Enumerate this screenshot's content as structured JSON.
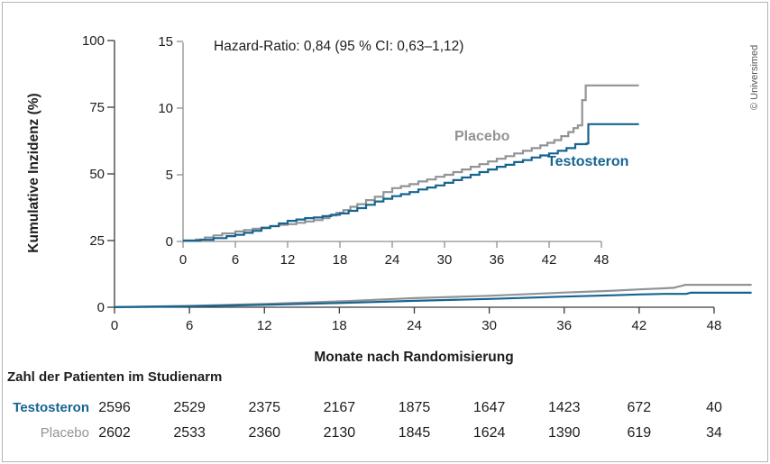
{
  "figure": {
    "credit": "© Universimed",
    "hazard_ratio_text": "Hazard-Ratio: 0,84 (95 % CI: 0,63–1,12)"
  },
  "chart_data": {
    "type": "line",
    "subtype": "kaplan-meier-cumulative-incidence-step",
    "title": "",
    "xlabel": "Monate nach Randomisierung",
    "ylabel": "Kumulative Inzidenz (%)",
    "annotation": "Hazard-Ratio: 0,84 (95 % CI: 0,63–1,12)",
    "legend_position": "inline-labels",
    "grid": false,
    "main_axis": {
      "x_ticks": [
        0,
        6,
        12,
        18,
        24,
        30,
        36,
        42,
        48
      ],
      "y_ticks": [
        0,
        25,
        50,
        75,
        100
      ],
      "xlim": [
        0,
        51
      ],
      "ylim": [
        0,
        100
      ]
    },
    "inset_axis": {
      "x_ticks": [
        0,
        6,
        12,
        18,
        24,
        30,
        36,
        42,
        48
      ],
      "y_ticks": [
        0,
        5,
        10,
        15
      ],
      "xlim": [
        0,
        52.3
      ],
      "ylim": [
        0,
        15
      ]
    },
    "series": [
      {
        "name": "Placebo",
        "color": "#919396",
        "points": [
          [
            0,
            0.07
          ],
          [
            1.5,
            0.15
          ],
          [
            2.5,
            0.3
          ],
          [
            3.5,
            0.45
          ],
          [
            4.5,
            0.6
          ],
          [
            6,
            0.75
          ],
          [
            7,
            0.85
          ],
          [
            8,
            0.95
          ],
          [
            9,
            1.05
          ],
          [
            10,
            1.15
          ],
          [
            11,
            1.25
          ],
          [
            12,
            1.3
          ],
          [
            13,
            1.4
          ],
          [
            14,
            1.5
          ],
          [
            15,
            1.6
          ],
          [
            16,
            1.75
          ],
          [
            16.8,
            1.95
          ],
          [
            17.6,
            2.15
          ],
          [
            18.4,
            2.35
          ],
          [
            19.2,
            2.6
          ],
          [
            20,
            2.8
          ],
          [
            21,
            3.1
          ],
          [
            22,
            3.35
          ],
          [
            23,
            3.7
          ],
          [
            24,
            4.0
          ],
          [
            25,
            4.15
          ],
          [
            26,
            4.3
          ],
          [
            27,
            4.5
          ],
          [
            28,
            4.65
          ],
          [
            29,
            4.85
          ],
          [
            30,
            5.0
          ],
          [
            31,
            5.2
          ],
          [
            32,
            5.4
          ],
          [
            33,
            5.6
          ],
          [
            34,
            5.8
          ],
          [
            35,
            6.0
          ],
          [
            36,
            6.2
          ],
          [
            37,
            6.4
          ],
          [
            38,
            6.6
          ],
          [
            39,
            6.8
          ],
          [
            40,
            7.0
          ],
          [
            41,
            7.2
          ],
          [
            41.8,
            7.4
          ],
          [
            42.6,
            7.6
          ],
          [
            43.4,
            7.9
          ],
          [
            44.2,
            8.2
          ],
          [
            44.8,
            8.5
          ],
          [
            45.3,
            8.7
          ],
          [
            45.8,
            10.6
          ],
          [
            46.2,
            11.7
          ],
          [
            52.3,
            11.7
          ]
        ]
      },
      {
        "name": "Testosteron",
        "color": "#16648f",
        "points": [
          [
            0,
            0.07
          ],
          [
            2,
            0.12
          ],
          [
            3.5,
            0.25
          ],
          [
            5,
            0.4
          ],
          [
            6,
            0.5
          ],
          [
            7,
            0.65
          ],
          [
            8,
            0.8
          ],
          [
            9,
            1.0
          ],
          [
            10,
            1.15
          ],
          [
            11,
            1.35
          ],
          [
            12,
            1.55
          ],
          [
            13,
            1.65
          ],
          [
            14,
            1.75
          ],
          [
            15,
            1.8
          ],
          [
            16,
            1.9
          ],
          [
            17,
            2.0
          ],
          [
            18,
            2.1
          ],
          [
            19,
            2.3
          ],
          [
            20,
            2.5
          ],
          [
            21,
            2.75
          ],
          [
            22,
            3.0
          ],
          [
            23,
            3.2
          ],
          [
            24,
            3.4
          ],
          [
            25,
            3.55
          ],
          [
            26,
            3.7
          ],
          [
            27,
            3.9
          ],
          [
            28,
            4.05
          ],
          [
            29,
            4.2
          ],
          [
            30,
            4.4
          ],
          [
            31,
            4.6
          ],
          [
            32,
            4.8
          ],
          [
            33,
            5.0
          ],
          [
            34,
            5.2
          ],
          [
            35,
            5.4
          ],
          [
            36,
            5.6
          ],
          [
            37,
            5.75
          ],
          [
            38,
            5.95
          ],
          [
            39,
            6.1
          ],
          [
            40,
            6.3
          ],
          [
            41,
            6.45
          ],
          [
            42,
            6.6
          ],
          [
            43,
            6.8
          ],
          [
            44,
            7.0
          ],
          [
            45,
            7.3
          ],
          [
            46.3,
            7.35
          ],
          [
            46.5,
            8.8
          ],
          [
            52.3,
            8.8
          ]
        ]
      }
    ],
    "overview_series": [
      {
        "name": "Placebo",
        "color": "#919396",
        "points": [
          [
            0,
            0.05
          ],
          [
            6,
            0.5
          ],
          [
            12,
            1.2
          ],
          [
            18,
            2.2
          ],
          [
            24,
            3.4
          ],
          [
            30,
            4.3
          ],
          [
            36,
            5.5
          ],
          [
            40,
            6.2
          ],
          [
            42,
            6.7
          ],
          [
            44,
            7.1
          ],
          [
            44.8,
            7.3
          ],
          [
            45.1,
            7.7
          ],
          [
            45.4,
            8.0
          ],
          [
            45.7,
            8.4
          ],
          [
            51,
            8.4
          ]
        ]
      },
      {
        "name": "Testosteron",
        "color": "#16648f",
        "points": [
          [
            0,
            0.05
          ],
          [
            6,
            0.35
          ],
          [
            12,
            0.9
          ],
          [
            18,
            1.6
          ],
          [
            24,
            2.4
          ],
          [
            30,
            3.1
          ],
          [
            36,
            4.0
          ],
          [
            40,
            4.5
          ],
          [
            42,
            4.8
          ],
          [
            44,
            5.0
          ],
          [
            45.8,
            5.05
          ],
          [
            46.1,
            5.45
          ],
          [
            51,
            5.45
          ]
        ]
      }
    ]
  },
  "risk_table": {
    "title": "Zahl der Patienten im Studienarm",
    "months": [
      0,
      6,
      12,
      18,
      24,
      30,
      36,
      42,
      48
    ],
    "rows": [
      {
        "label": "Testosteron",
        "color": "#16648f",
        "bold": true,
        "values": [
          "2596",
          "2529",
          "2375",
          "2167",
          "1875",
          "1647",
          "1423",
          "672",
          "40"
        ]
      },
      {
        "label": "Placebo",
        "color": "#919396",
        "bold": false,
        "values": [
          "2602",
          "2533",
          "2360",
          "2130",
          "1845",
          "1624",
          "1390",
          "619",
          "34"
        ]
      }
    ]
  }
}
